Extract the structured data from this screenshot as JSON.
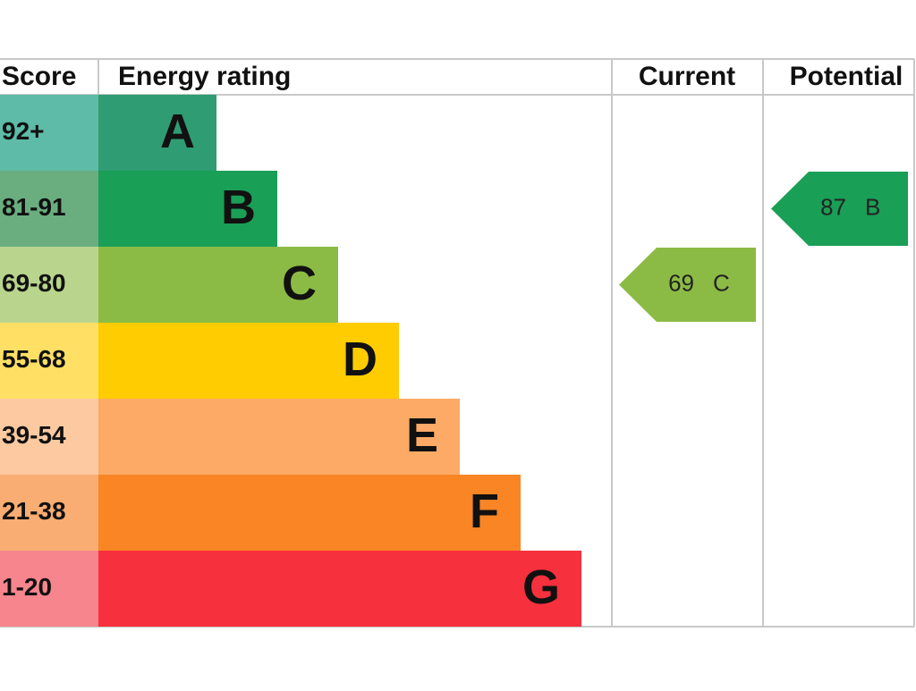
{
  "header": {
    "score": "Score",
    "rating": "Energy rating",
    "current": "Current",
    "potential": "Potential"
  },
  "bands": [
    {
      "score": "92+",
      "letter": "A",
      "color": "#2f9c74",
      "score_color": "#5dbba7"
    },
    {
      "score": "81-91",
      "letter": "B",
      "color": "#1a9f56",
      "score_color": "#6aae80"
    },
    {
      "score": "69-80",
      "letter": "C",
      "color": "#8cbb45",
      "score_color": "#b9d48c"
    },
    {
      "score": "55-68",
      "letter": "D",
      "color": "#ffcc01",
      "score_color": "#ffe065"
    },
    {
      "score": "39-54",
      "letter": "E",
      "color": "#fcaa65",
      "score_color": "#fcc9a0"
    },
    {
      "score": "21-38",
      "letter": "F",
      "color": "#f98524",
      "score_color": "#f9ad72"
    },
    {
      "score": "1-20",
      "letter": "G",
      "color": "#f7303e",
      "score_color": "#f6858d"
    }
  ],
  "current": {
    "value": 69,
    "letter": "C"
  },
  "potential": {
    "value": 87,
    "letter": "B"
  }
}
